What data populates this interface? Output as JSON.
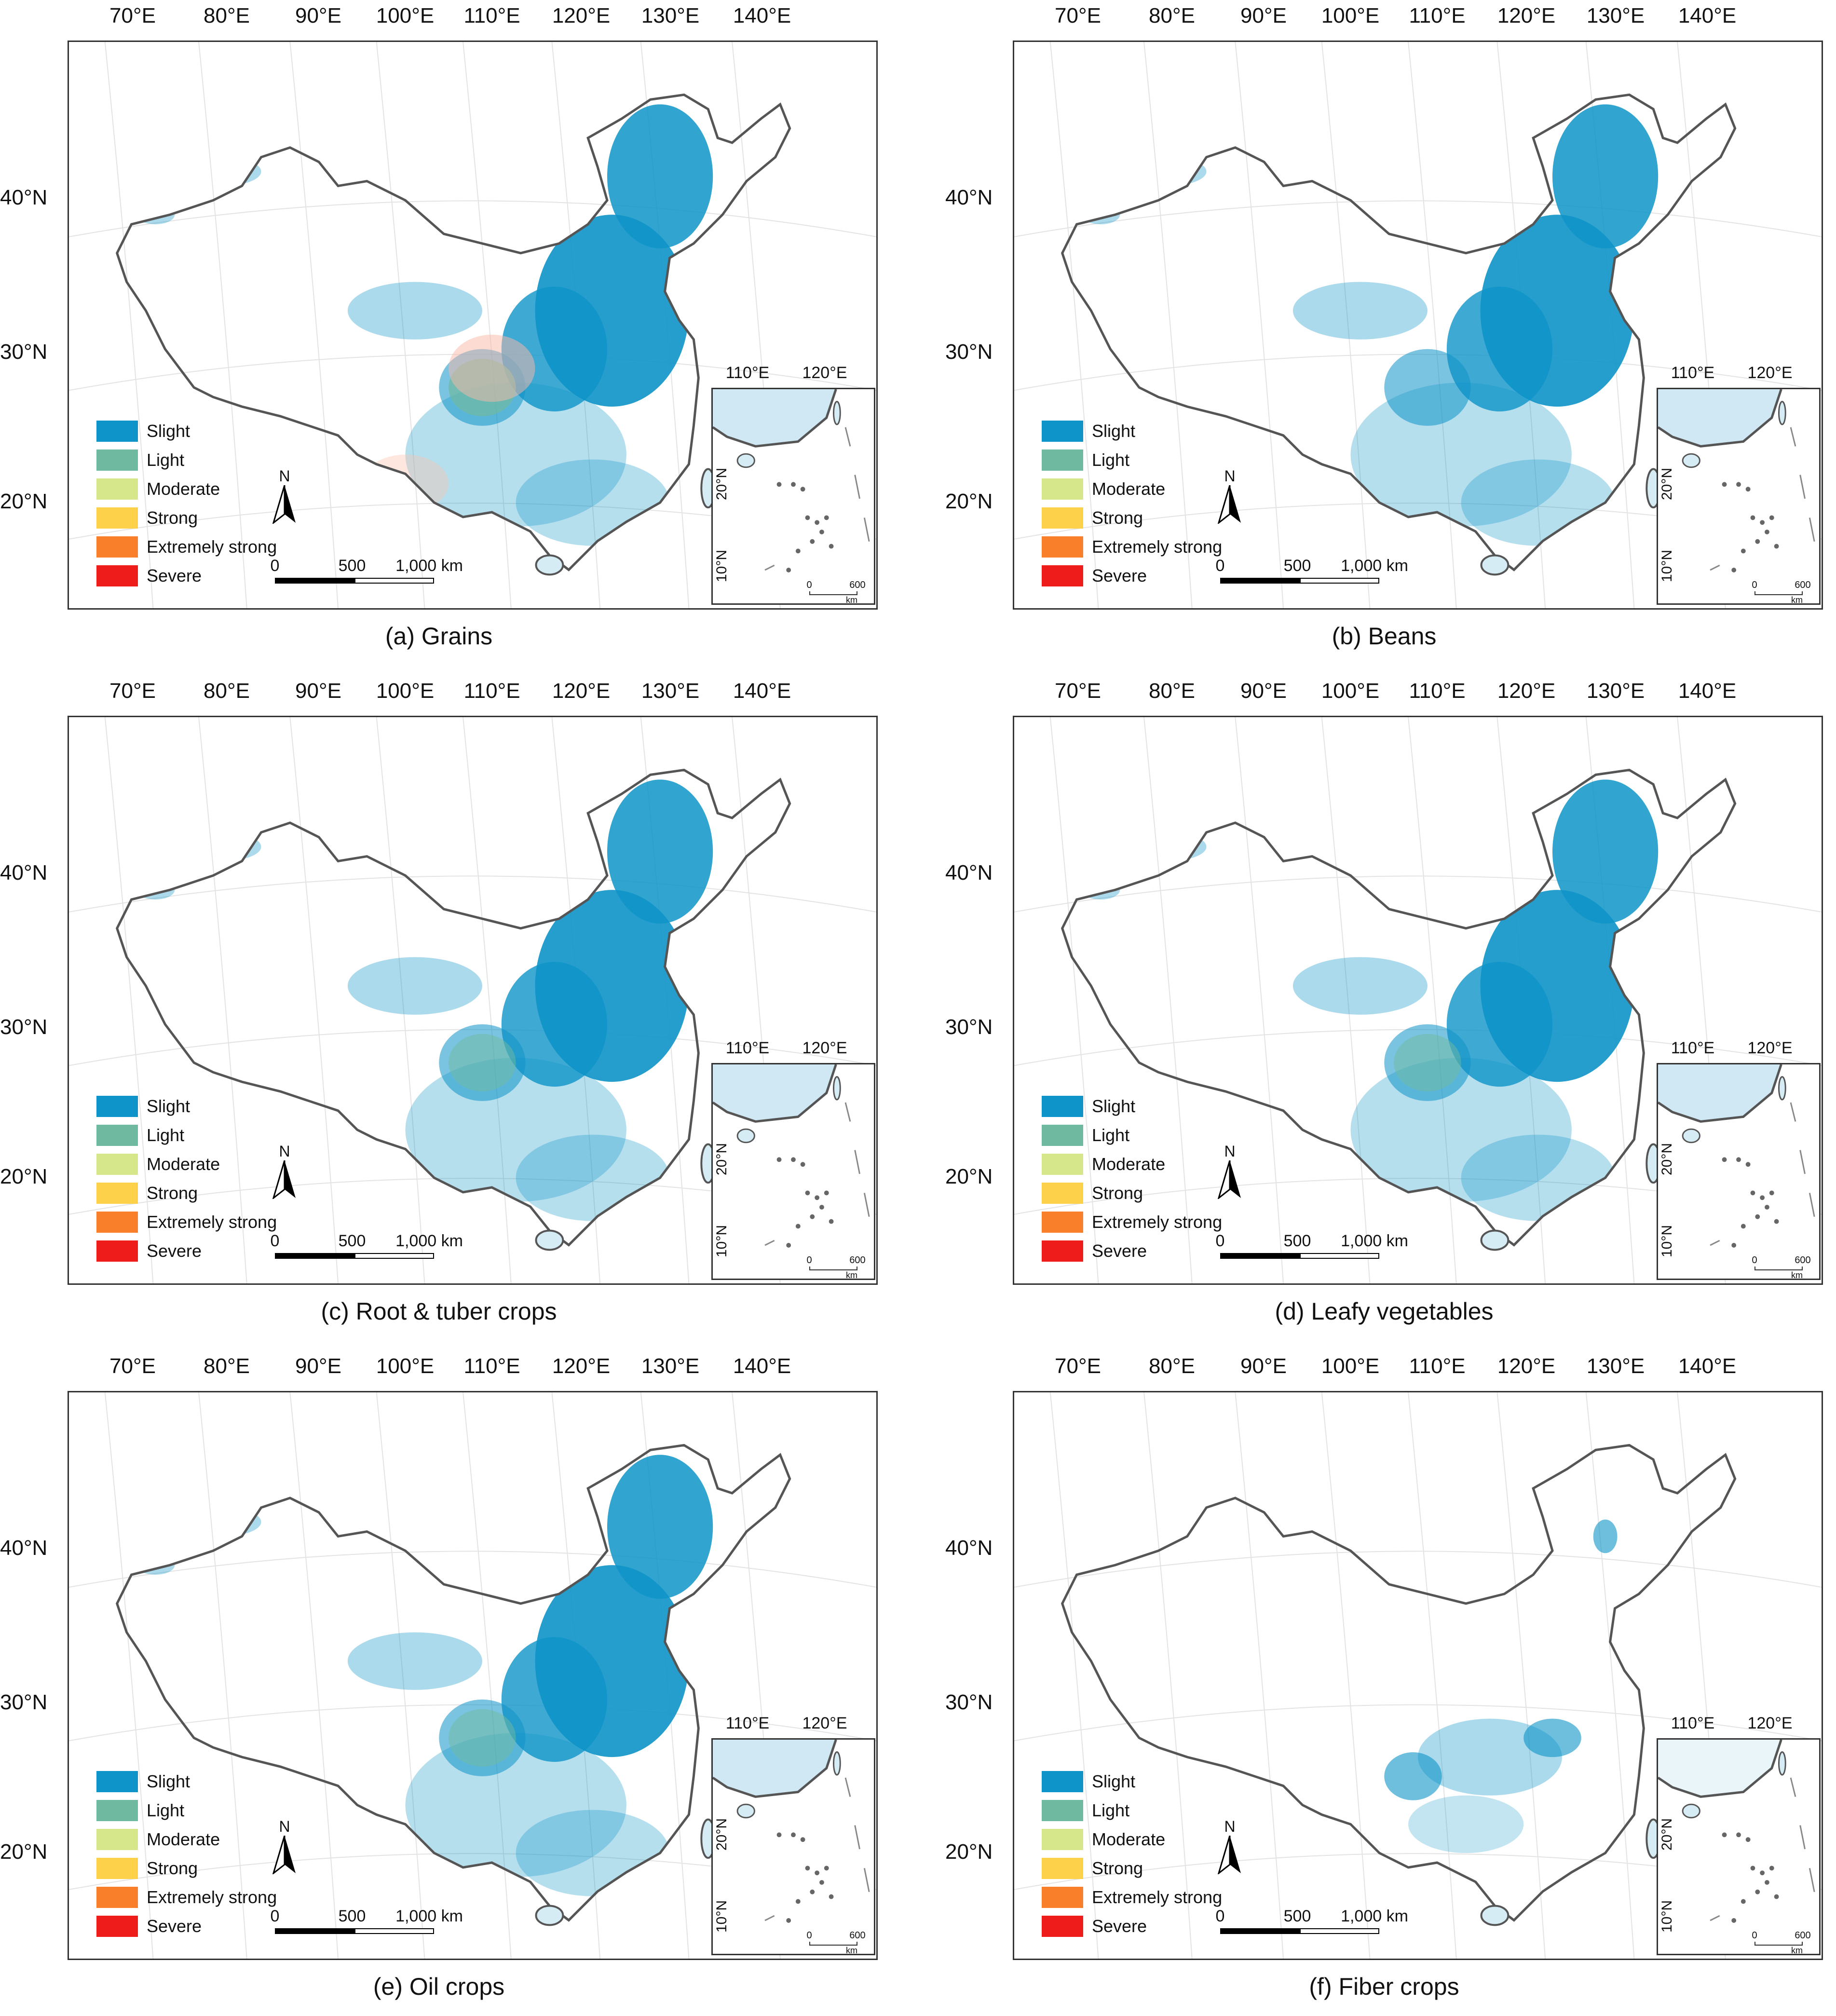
{
  "lon_ticks": [
    "70°E",
    "80°E",
    "90°E",
    "100°E",
    "110°E",
    "120°E",
    "130°E",
    "140°E"
  ],
  "lat_ticks": [
    "40°N",
    "30°N",
    "20°N"
  ],
  "legend": [
    {
      "label": "Slight",
      "color": "#0e94c8"
    },
    {
      "label": "Light",
      "color": "#6fb9a0"
    },
    {
      "label": "Moderate",
      "color": "#d6e68b"
    },
    {
      "label": "Strong",
      "color": "#fdd149"
    },
    {
      "label": "Extremely strong",
      "color": "#f97f2a"
    },
    {
      "label": "Severe",
      "color": "#ef1c1c"
    }
  ],
  "north_label": "N",
  "scalebar": {
    "labels": [
      "0",
      "500",
      "1,000 km"
    ]
  },
  "inset": {
    "lon_ticks": [
      "110°E",
      "120°E"
    ],
    "lat_ticks": [
      "20°N",
      "10°N"
    ],
    "scale_labels": [
      "0",
      "600"
    ],
    "scale_unit": "km"
  },
  "panels": [
    {
      "caption": "(a) Grains"
    },
    {
      "caption": "(b) Beans"
    },
    {
      "caption": "(c) Root & tuber crops"
    },
    {
      "caption": "(d) Leafy vegetables"
    },
    {
      "caption": "(e) Oil crops"
    },
    {
      "caption": "(f) Fiber crops"
    }
  ]
}
